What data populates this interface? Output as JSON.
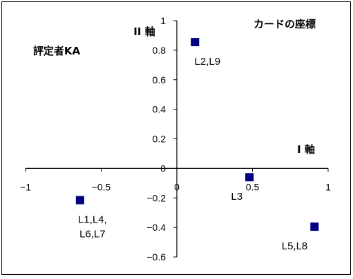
{
  "chart_data": {
    "type": "scatter",
    "title": "カードの座標",
    "subtitle": "評定者KA",
    "xlabel": "I 軸",
    "ylabel": "II 軸",
    "xlim": [
      -1,
      1
    ],
    "ylim": [
      -0.6,
      1
    ],
    "x_ticks": [
      -1,
      -0.5,
      0,
      0.5,
      1
    ],
    "x_tick_labels": [
      "−1",
      "−0.5",
      "0",
      "0.5",
      "1"
    ],
    "y_ticks": [
      1,
      0.8,
      0.6,
      0.4,
      0.2,
      0,
      -0.2,
      -0.4,
      -0.6
    ],
    "y_tick_labels": [
      "1",
      "0.8",
      "0.6",
      "0.4",
      "0.2",
      "0",
      "−0.2",
      "−0.4",
      "−0.6"
    ],
    "grid": false,
    "marker_color": "#000080",
    "points": [
      {
        "x": 0.12,
        "y": 0.855,
        "label": [
          "L2,L9"
        ],
        "label_pos": "below"
      },
      {
        "x": 0.48,
        "y": -0.06,
        "label": [
          "L3"
        ],
        "label_pos": "below-left"
      },
      {
        "x": -0.64,
        "y": -0.215,
        "label": [
          "L1,L4,",
          "L6,L7"
        ],
        "label_pos": "below"
      },
      {
        "x": 0.91,
        "y": -0.395,
        "label": [
          "L5,L8"
        ],
        "label_pos": "below-left"
      }
    ]
  }
}
